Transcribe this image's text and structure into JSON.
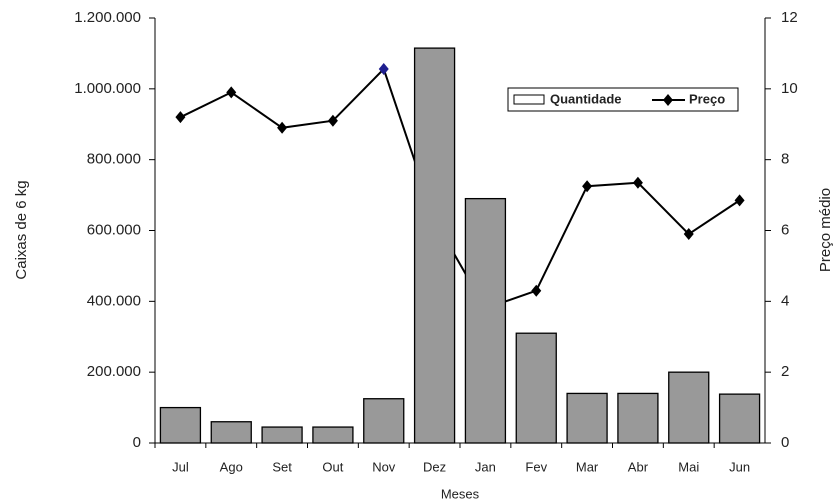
{
  "chart_data": {
    "type": "bar_line",
    "categories": [
      "Jul",
      "Ago",
      "Set",
      "Out",
      "Nov",
      "Dez",
      "Jan",
      "Fev",
      "Mar",
      "Abr",
      "Mai",
      "Jun"
    ],
    "series": [
      {
        "name": "Quantidade",
        "type": "bar",
        "color": "#999999",
        "values": [
          100000,
          60000,
          45000,
          45000,
          125000,
          1115000,
          690000,
          310000,
          140000,
          140000,
          200000,
          138000
        ]
      },
      {
        "name": "Preço",
        "type": "line",
        "axis": "y2",
        "color": "#000000",
        "marker_colors": [
          "#000000",
          "#000000",
          "#000000",
          "#000000",
          "#1f1f8f",
          "#000000",
          "#000000",
          "#000000",
          "#000000",
          "#000000",
          "#000000",
          "#000000"
        ],
        "values": [
          9.2,
          9.9,
          8.9,
          9.1,
          10.56,
          6.3,
          3.8,
          4.3,
          7.25,
          7.35,
          5.9,
          6.85
        ]
      }
    ],
    "ylabel": "Caixas de 6 kg",
    "y2label": "Preço médio",
    "xlabel": "Meses",
    "ylim": [
      0,
      1200000
    ],
    "yticks": [
      0,
      {
        "value": 200000,
        "label": "200.000"
      },
      {
        "value": 400000,
        "label": "400.000"
      },
      {
        "value": 600000,
        "label": "600.000"
      },
      {
        "value": 800000,
        "label": "800.000"
      },
      {
        "value": 1000000,
        "label": "1.000.000"
      },
      {
        "value": 1200000,
        "label": "1.200.000"
      }
    ],
    "y2lim": [
      0,
      12
    ],
    "y2ticks": [
      0,
      2,
      4,
      6,
      8,
      10,
      12
    ],
    "legend": "top-right"
  }
}
